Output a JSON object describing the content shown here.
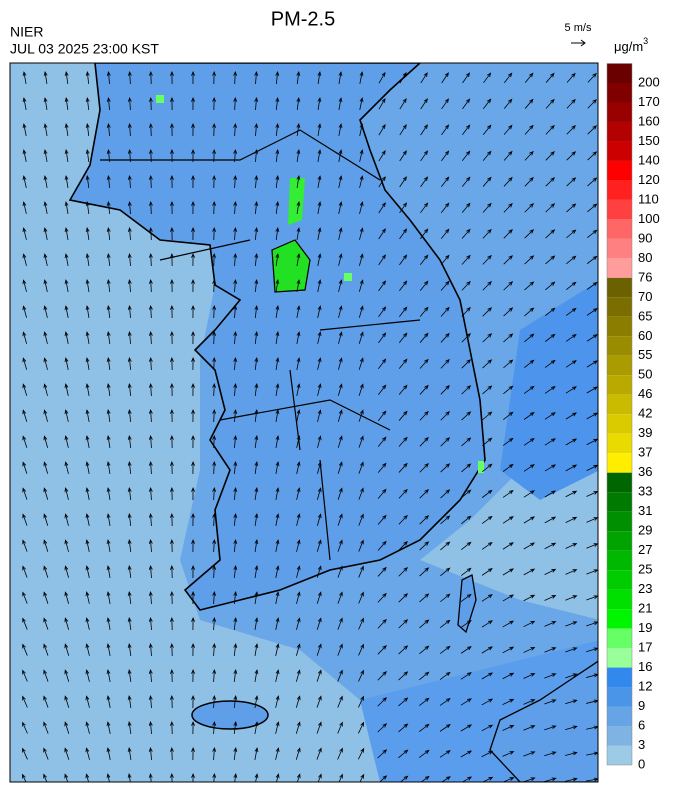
{
  "title": "PM-2.5",
  "source": "NIER",
  "timestamp": "JUL 03 2025 23:00 KST",
  "wind_scale": "5 m/s",
  "unit": {
    "base": "μg/m",
    "superscript": "3"
  },
  "legend": {
    "labels": [
      200,
      170,
      160,
      150,
      140,
      120,
      110,
      100,
      90,
      80,
      76,
      70,
      65,
      60,
      55,
      50,
      46,
      42,
      39,
      37,
      36,
      33,
      31,
      29,
      27,
      25,
      23,
      21,
      19,
      17,
      16,
      12,
      9,
      6,
      3,
      0
    ],
    "colors": [
      "#6b0000",
      "#800000",
      "#990000",
      "#b30000",
      "#cc0000",
      "#ff0000",
      "#ff2020",
      "#ff4040",
      "#ff6666",
      "#ff8080",
      "#ff9c9c",
      "#6b6100",
      "#7a6e00",
      "#8a7d00",
      "#9a8c00",
      "#aa9b00",
      "#baaa00",
      "#cabb00",
      "#d9cb00",
      "#e9db00",
      "#ffee00",
      "#006600",
      "#007a00",
      "#008f00",
      "#00a300",
      "#00b800",
      "#00cc00",
      "#00e000",
      "#00f500",
      "#66ff66",
      "#99ff99",
      "#3388ee",
      "#4a95e8",
      "#66a4e6",
      "#7fb3e3",
      "#9dcbe5"
    ]
  }
}
